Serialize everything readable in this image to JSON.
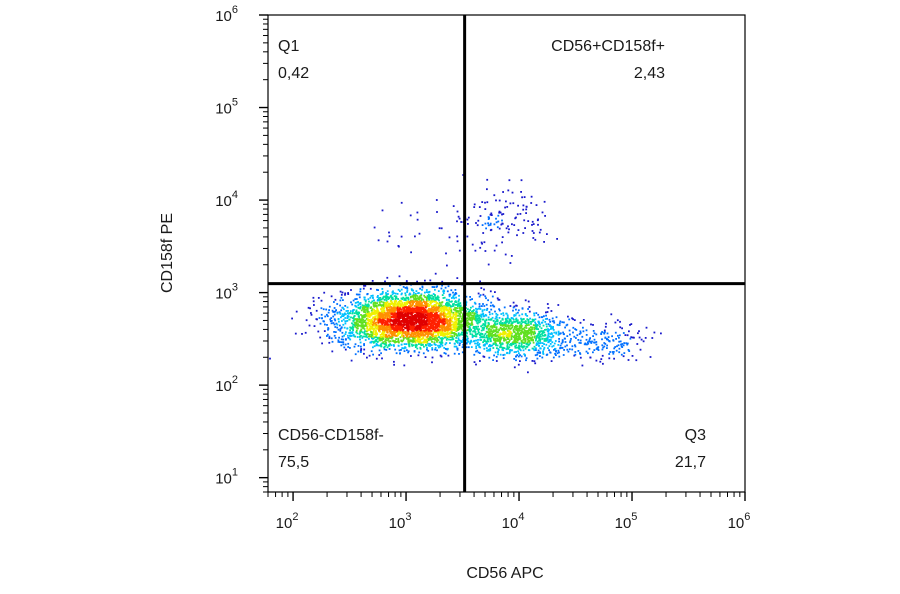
{
  "chart_data": {
    "type": "scatter",
    "subtype": "flow-cytometry-density-dot-plot",
    "title": "",
    "xlabel": "CD56 APC",
    "ylabel": "CD158f PE",
    "x_scale": "log",
    "y_scale": "log",
    "xlim": [
      60,
      1000000
    ],
    "ylim": [
      7,
      1000000
    ],
    "x_ticks": [
      {
        "base": "10",
        "exp": "2",
        "value": 100
      },
      {
        "base": "10",
        "exp": "3",
        "value": 1000
      },
      {
        "base": "10",
        "exp": "4",
        "value": 10000
      },
      {
        "base": "10",
        "exp": "5",
        "value": 100000
      },
      {
        "base": "10",
        "exp": "6",
        "value": 1000000
      }
    ],
    "y_ticks": [
      {
        "base": "10",
        "exp": "1",
        "value": 10
      },
      {
        "base": "10",
        "exp": "2",
        "value": 100
      },
      {
        "base": "10",
        "exp": "3",
        "value": 1000
      },
      {
        "base": "10",
        "exp": "4",
        "value": 10000
      },
      {
        "base": "10",
        "exp": "5",
        "value": 100000
      },
      {
        "base": "10",
        "exp": "6",
        "value": 1000000
      }
    ],
    "gates": {
      "x": 3300,
      "y": 1250
    },
    "quadrants": [
      {
        "position": "top-left",
        "name": "Q1",
        "value": "0,42"
      },
      {
        "position": "top-right",
        "name": "CD56+CD158f+",
        "value": "2,43"
      },
      {
        "position": "bottom-left",
        "name": "CD56-CD158f-",
        "value": "75,5"
      },
      {
        "position": "bottom-right",
        "name": "Q3",
        "value": "21,7"
      }
    ],
    "populations": [
      {
        "cx": 1100,
        "cy": 520,
        "sx": 0.32,
        "sy": 0.15,
        "weight": 0.72
      },
      {
        "cx": 9500,
        "cy": 360,
        "sx": 0.24,
        "sy": 0.12,
        "weight": 0.2
      },
      {
        "cx": 7500,
        "cy": 6000,
        "sx": 0.2,
        "sy": 0.2,
        "weight": 0.025
      },
      {
        "cx": 60000,
        "cy": 300,
        "sx": 0.18,
        "sy": 0.1,
        "weight": 0.03
      },
      {
        "cx": 1600,
        "cy": 5000,
        "sx": 0.25,
        "sy": 0.2,
        "weight": 0.006
      }
    ],
    "colormap": [
      "#1a1acc",
      "#0070ff",
      "#00c0ff",
      "#00e0a0",
      "#60e020",
      "#f0f000",
      "#ff9000",
      "#ff2000",
      "#e00000"
    ],
    "grid": false,
    "legend": "none"
  }
}
